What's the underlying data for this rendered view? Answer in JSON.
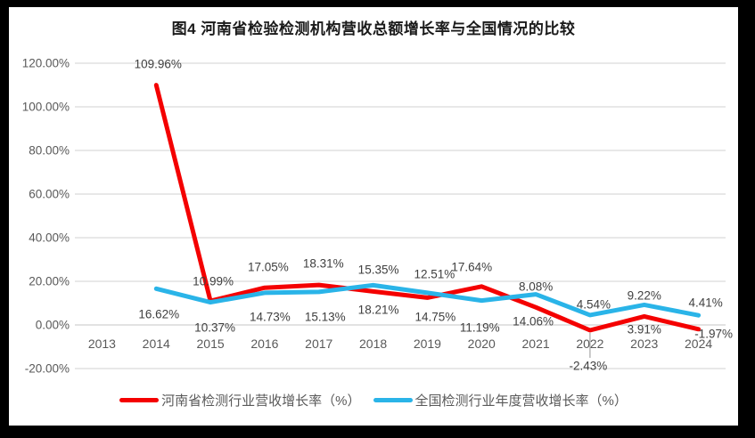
{
  "page": {
    "frame_color": "#000000",
    "canvas_color": "#ffffff"
  },
  "chart_data": {
    "type": "line",
    "title": "图4   河南省检验检测机构营收总额增长率与全国情况的比较",
    "categories": [
      "2013",
      "2014",
      "2015",
      "2016",
      "2017",
      "2018",
      "2019",
      "2020",
      "2021",
      "2022",
      "2023",
      "2024"
    ],
    "series": [
      {
        "name": "河南省检测行业营收增长率（%）",
        "color": "#f40000",
        "start_category": "2014",
        "values": [
          109.96,
          10.99,
          17.05,
          18.31,
          15.35,
          12.51,
          17.64,
          8.08,
          -2.43,
          3.91,
          -1.97
        ],
        "labels": [
          "109.96%",
          "10.99%",
          "17.05%",
          "18.31%",
          "15.35%",
          "12.51%",
          "17.64%",
          "8.08%",
          "-2.43%",
          "3.91%",
          "-1.97%"
        ]
      },
      {
        "name": "全国检测行业年度营收增长率（%）",
        "color": "#2ab4e8",
        "start_category": "2014",
        "values": [
          16.62,
          10.37,
          14.73,
          15.13,
          18.21,
          14.75,
          11.19,
          14.06,
          4.54,
          9.22,
          4.41
        ],
        "labels": [
          "16.62%",
          "10.37%",
          "14.73%",
          "15.13%",
          "18.21%",
          "14.75%",
          "11.19%",
          "14.06%",
          "4.54%",
          "9.22%",
          "4.41%"
        ]
      }
    ],
    "y_axis": {
      "ticks": [
        "120.00%",
        "100.00%",
        "80.00%",
        "60.00%",
        "40.00%",
        "20.00%",
        "0.00%",
        "-20.00%"
      ],
      "tick_values": [
        120,
        100,
        80,
        60,
        40,
        20,
        0,
        -20
      ],
      "min": -20,
      "max": 120,
      "step": 20
    },
    "grid": true,
    "gridline_color": "#d9d9d9",
    "leader_line_color": "#a6a6a6",
    "legend_position": "bottom"
  }
}
